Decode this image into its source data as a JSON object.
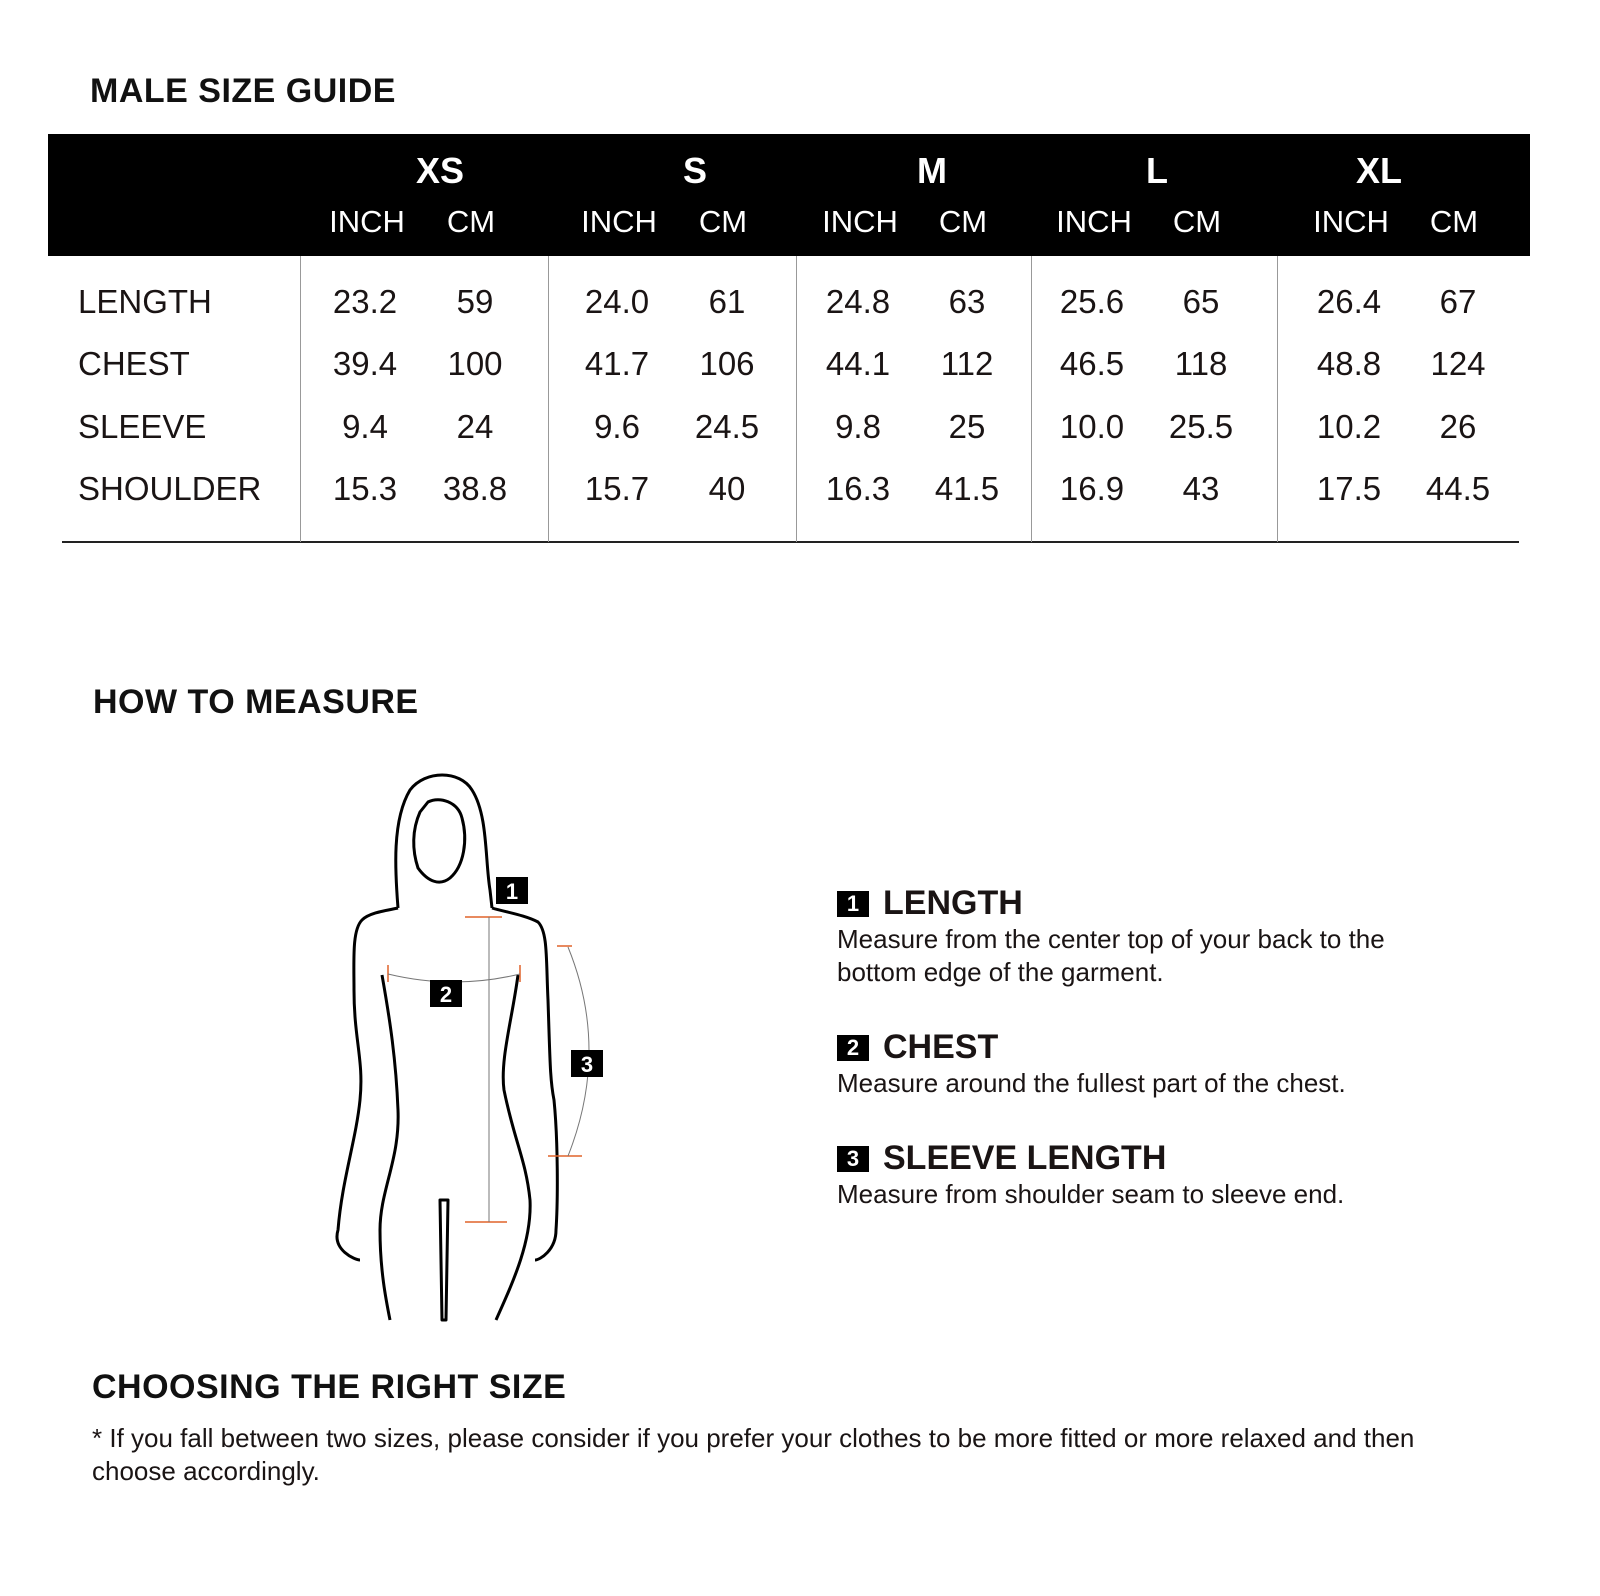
{
  "size_guide": {
    "title": "MALE SIZE GUIDE",
    "sizes": [
      "XS",
      "S",
      "M",
      "L",
      "XL"
    ],
    "units": [
      "INCH",
      "CM"
    ],
    "rows": [
      {
        "label": "LENGTH",
        "values": [
          [
            "23.2",
            "59"
          ],
          [
            "24.0",
            "61"
          ],
          [
            "24.8",
            "63"
          ],
          [
            "25.6",
            "65"
          ],
          [
            "26.4",
            "67"
          ]
        ]
      },
      {
        "label": "CHEST",
        "values": [
          [
            "39.4",
            "100"
          ],
          [
            "41.7",
            "106"
          ],
          [
            "44.1",
            "112"
          ],
          [
            "46.5",
            "118"
          ],
          [
            "48.8",
            "124"
          ]
        ]
      },
      {
        "label": "SLEEVE",
        "values": [
          [
            "9.4",
            "24"
          ],
          [
            "9.6",
            "24.5"
          ],
          [
            "9.8",
            "25"
          ],
          [
            "10.0",
            "25.5"
          ],
          [
            "10.2",
            "26"
          ]
        ]
      },
      {
        "label": "SHOULDER",
        "values": [
          [
            "15.3",
            "38.8"
          ],
          [
            "15.7",
            "40"
          ],
          [
            "16.3",
            "41.5"
          ],
          [
            "16.9",
            "43"
          ],
          [
            "17.5",
            "44.5"
          ]
        ]
      }
    ]
  },
  "how_to_measure": {
    "title": "HOW TO MEASURE",
    "figure_markers": [
      "1",
      "2",
      "3"
    ],
    "steps": [
      {
        "number": "1",
        "title": "LENGTH",
        "text": "Measure from the center top of your back to the bottom edge of the garment."
      },
      {
        "number": "2",
        "title": "CHEST",
        "text": "Measure around the fullest part of the chest."
      },
      {
        "number": "3",
        "title": "SLEEVE LENGTH",
        "text": "Measure from shoulder seam to sleeve end."
      }
    ],
    "accent_color": "#e0632a"
  },
  "choosing": {
    "title": "CHOOSING THE RIGHT SIZE",
    "note": "* If you fall between two sizes, please consider if you prefer your clothes to be more fitted or more relaxed and then choose accordingly."
  }
}
